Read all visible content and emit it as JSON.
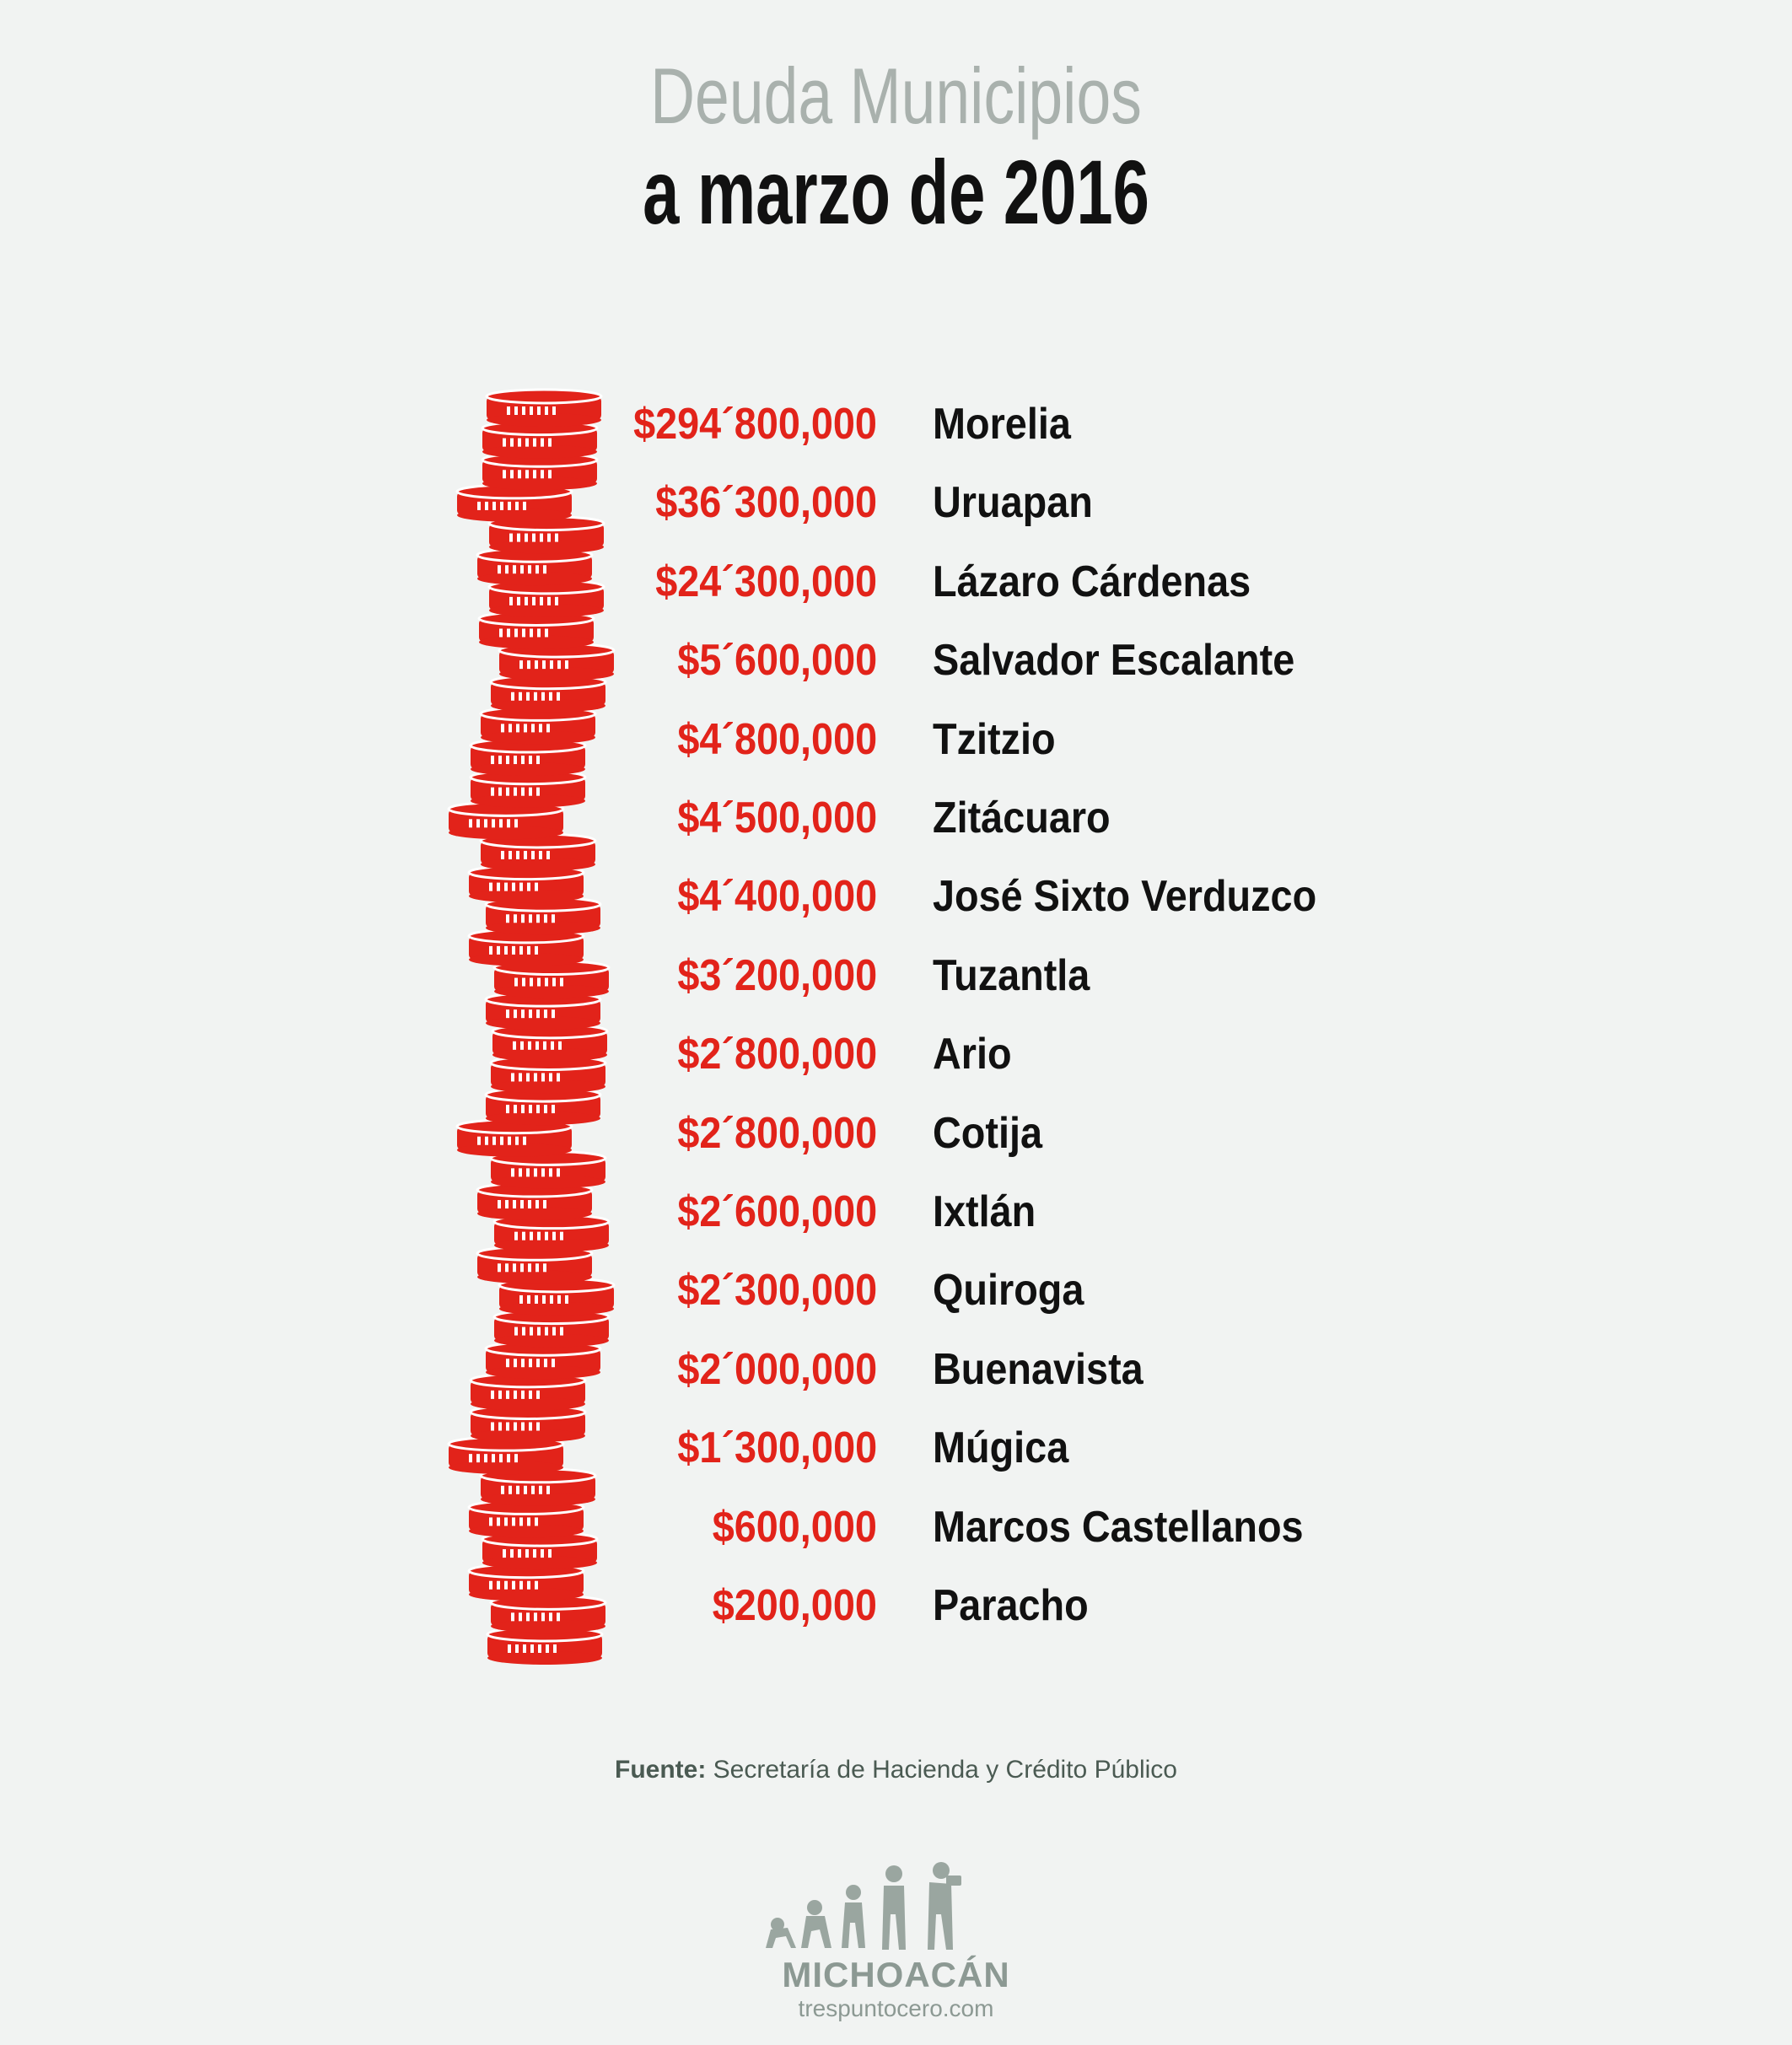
{
  "header": {
    "title_line1": "Deuda Municipios",
    "title_line2": "a marzo de 2016"
  },
  "chart_data": {
    "type": "table",
    "title": "Deuda Municipios a marzo de 2016",
    "categories": [
      "Morelia",
      "Uruapan",
      "Lázaro Cárdenas",
      "Salvador Escalante",
      "Tzitzio",
      "Zitácuaro",
      "José Sixto Verduzco",
      "Tuzantla",
      "Ario",
      "Cotija",
      "Ixtlán",
      "Quiroga",
      "Buenavista",
      "Múgica",
      "Marcos Castellanos",
      "Paracho"
    ],
    "values": [
      294800000,
      36300000,
      24300000,
      5600000,
      4800000,
      4500000,
      4400000,
      3200000,
      2800000,
      2800000,
      2600000,
      2300000,
      2000000,
      1300000,
      600000,
      200000
    ],
    "rows": [
      {
        "amount": "$294´800,000",
        "name": "Morelia"
      },
      {
        "amount": "$36´300,000",
        "name": "Uruapan"
      },
      {
        "amount": "$24´300,000",
        "name": "Lázaro Cárdenas"
      },
      {
        "amount": "$5´600,000",
        "name": "Salvador Escalante"
      },
      {
        "amount": "$4´800,000",
        "name": "Tzitzio"
      },
      {
        "amount": "$4´500,000",
        "name": "Zitácuaro"
      },
      {
        "amount": "$4´400,000",
        "name": "José Sixto Verduzco"
      },
      {
        "amount": "$3´200,000",
        "name": "Tuzantla"
      },
      {
        "amount": "$2´800,000",
        "name": "Ario"
      },
      {
        "amount": "$2´800,000",
        "name": "Cotija"
      },
      {
        "amount": "$2´600,000",
        "name": "Ixtlán"
      },
      {
        "amount": "$2´300,000",
        "name": "Quiroga"
      },
      {
        "amount": "$2´000,000",
        "name": "Buenavista"
      },
      {
        "amount": "$1´300,000",
        "name": "Múgica"
      },
      {
        "amount": "$600,000",
        "name": "Marcos Castellanos"
      },
      {
        "amount": "$200,000",
        "name": "Paracho"
      }
    ]
  },
  "source": {
    "label": "Fuente:",
    "text": "Secretaría de Hacienda y Crédito Público"
  },
  "logo": {
    "name": "MICHOACÁN",
    "url": "trespuntocero.com"
  },
  "colors": {
    "coin_red": "#e2231a",
    "amount_red": "#e2231a",
    "background": "#f1f3f2",
    "logo_gray": "#8c9993"
  }
}
